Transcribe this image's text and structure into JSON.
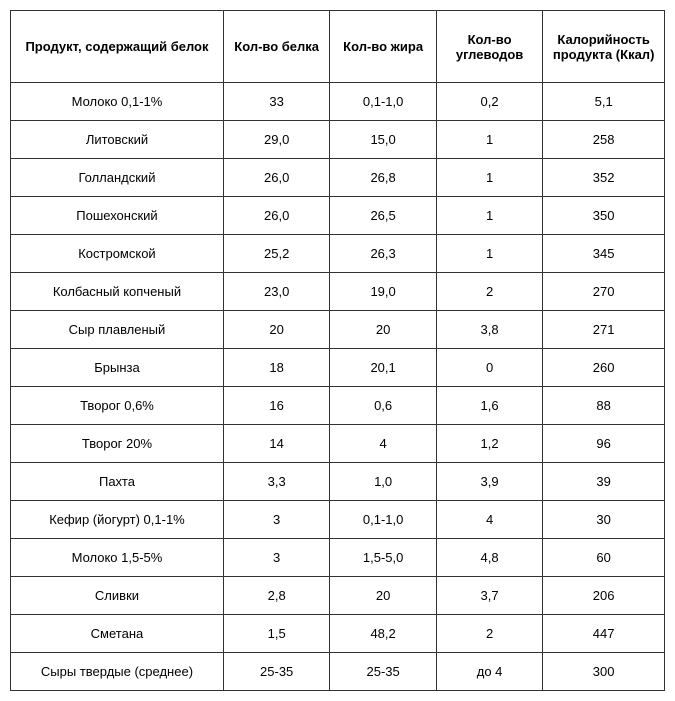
{
  "table": {
    "columns": [
      "Продукт, содержащий белок",
      "Кол-во белка",
      "Кол-во жира",
      "Кол-во углеводов",
      "Калорийность продукта (Ккал)"
    ],
    "rows": [
      [
        "Молоко 0,1-1%",
        "33",
        "0,1-1,0",
        "0,2",
        "5,1"
      ],
      [
        "Литовский",
        "29,0",
        "15,0",
        "1",
        "258"
      ],
      [
        "Голландский",
        "26,0",
        "26,8",
        "1",
        "352"
      ],
      [
        "Пошехонский",
        "26,0",
        "26,5",
        "1",
        "350"
      ],
      [
        "Костромской",
        "25,2",
        "26,3",
        "1",
        "345"
      ],
      [
        "Колбасный копченый",
        "23,0",
        "19,0",
        "2",
        "270"
      ],
      [
        "Сыр плавленый",
        "20",
        "20",
        "3,8",
        "271"
      ],
      [
        "Брынза",
        "18",
        "20,1",
        "0",
        "260"
      ],
      [
        "Творог 0,6%",
        "16",
        "0,6",
        "1,6",
        "88"
      ],
      [
        "Творог 20%",
        "14",
        "4",
        "1,2",
        "96"
      ],
      [
        "Пахта",
        "3,3",
        "1,0",
        "3,9",
        "39"
      ],
      [
        "Кефир (йогурт) 0,1-1%",
        "3",
        "0,1-1,0",
        "4",
        "30"
      ],
      [
        "Молоко 1,5-5%",
        "3",
        "1,5-5,0",
        "4,8",
        "60"
      ],
      [
        "Сливки",
        "2,8",
        "20",
        "3,7",
        "206"
      ],
      [
        "Сметана",
        "1,5",
        "48,2",
        "2",
        "447"
      ],
      [
        "Сыры твердые (среднее)",
        "25-35",
        "25-35",
        "до 4",
        "300"
      ]
    ],
    "border_color": "#333333",
    "background_color": "#ffffff",
    "text_color": "#000000",
    "font_size": 13,
    "header_font_weight": "bold"
  }
}
